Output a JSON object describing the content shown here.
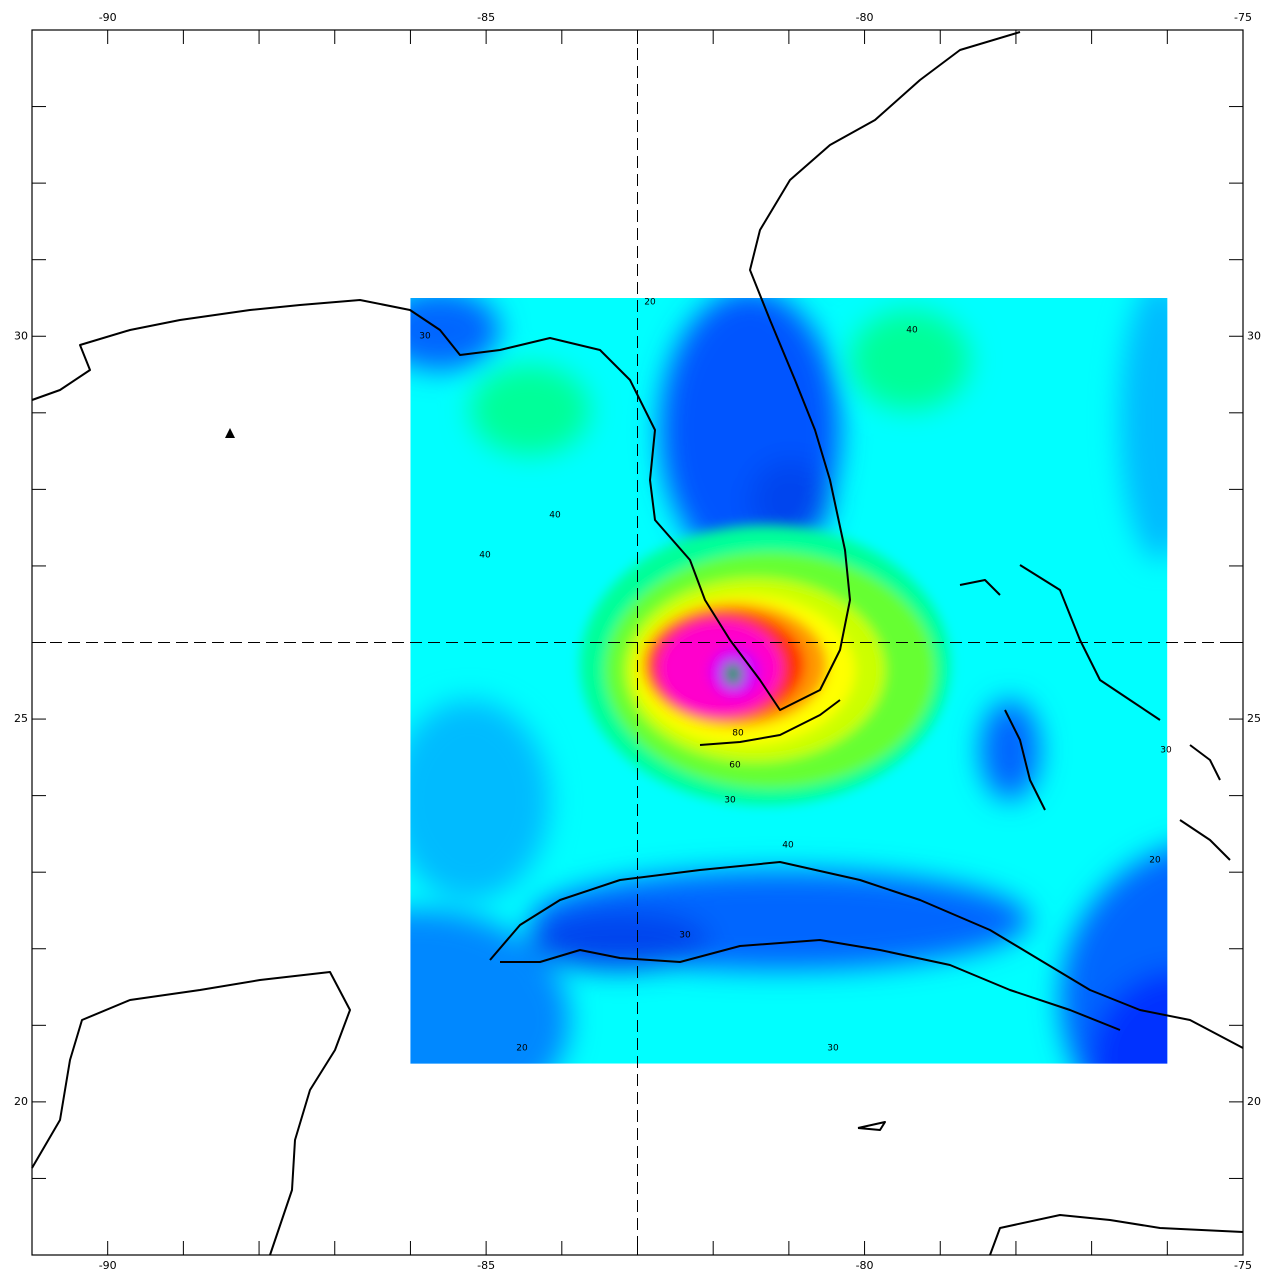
{
  "chart_data": {
    "type": "map",
    "xlim": [
      -91,
      -75
    ],
    "ylim": [
      18,
      34
    ],
    "xticks": [
      -90,
      -85,
      -80,
      -75
    ],
    "yticks": [
      20,
      25,
      30
    ],
    "xminorticks": [
      -89,
      -88,
      -87,
      -86,
      -84,
      -83,
      -82,
      -81,
      -79,
      -78,
      -77,
      -76
    ],
    "yminorticks": [
      19,
      21,
      22,
      23,
      24,
      26,
      27,
      28,
      29,
      31,
      32,
      33
    ],
    "reference_lon": -83,
    "reference_lat": 26,
    "field_extent": {
      "lon": [
        -86,
        -76
      ],
      "lat": [
        20.5,
        30.5
      ]
    },
    "contour_labels": [
      20,
      40,
      30,
      40,
      40,
      30,
      60,
      80,
      40,
      30,
      20,
      30,
      30,
      20
    ]
  }
}
